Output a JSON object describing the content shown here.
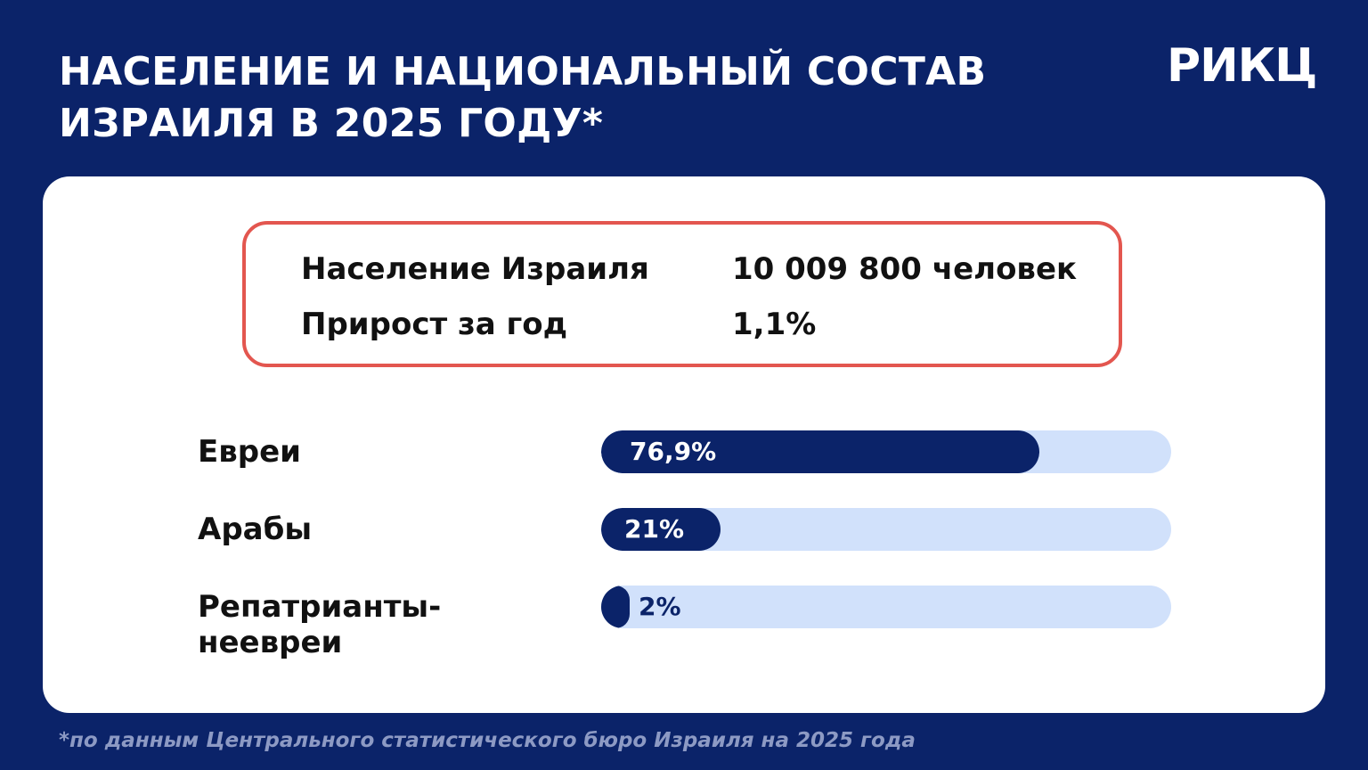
{
  "header": {
    "title": "НАСЕЛЕНИЕ И НАЦИОНАЛЬНЫЙ СОСТАВ ИЗРАИЛЯ В 2025 ГОДУ*",
    "logo": "РИКЦ"
  },
  "stats": [
    {
      "label": "Население Израиля",
      "value": "10 009 800 человек"
    },
    {
      "label": "Прирост за год",
      "value": "1,1%"
    }
  ],
  "chart_data": {
    "type": "bar",
    "orientation": "horizontal",
    "categories": [
      "Евреи",
      "Арабы",
      "Репатрианты-\nнеевреи"
    ],
    "values": [
      76.9,
      21,
      2
    ],
    "value_labels": [
      "76,9%",
      "21%",
      "2%"
    ],
    "unit": "%",
    "xlim": [
      0,
      100
    ],
    "title": "",
    "xlabel": "",
    "ylabel": "",
    "grid": false
  },
  "colors": {
    "background": "#0b2369",
    "card": "#ffffff",
    "bar_fill": "#0b2369",
    "bar_track": "#d1e1fb",
    "stats_border": "#e3564f"
  },
  "footnote": "*по данным Центрального статистического бюро Израиля на 2025 года"
}
